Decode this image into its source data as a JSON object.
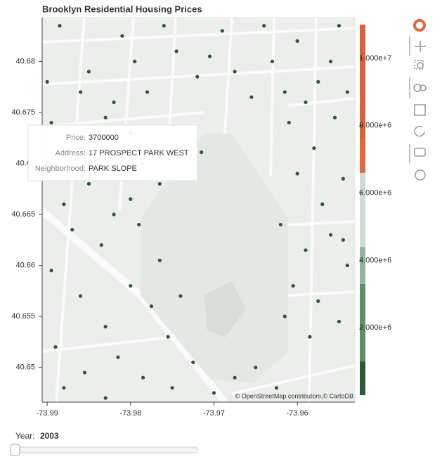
{
  "chart_data": {
    "type": "scatter",
    "title": "Brooklyn Residential Housing Prices",
    "xlim": [
      -73.9906,
      -73.9531
    ],
    "ylim": [
      40.6466,
      40.6843
    ],
    "xticks": [
      -73.99,
      -73.98,
      -73.97,
      -73.96
    ],
    "yticks": [
      40.65,
      40.655,
      40.66,
      40.665,
      40.67,
      40.675,
      40.68
    ],
    "series": [
      {
        "color": "#2c5a39",
        "x": [
          -73.9885,
          -73.985,
          -73.981,
          -73.978,
          -73.9745,
          -73.972,
          -73.969,
          -73.9655,
          -73.963,
          -73.96,
          -73.9575,
          -73.955,
          -73.986,
          -73.9795,
          -73.9705,
          -73.964,
          -73.959,
          -73.956,
          -73.982,
          -73.976,
          -73.9675,
          -73.99,
          -73.9615,
          -73.954,
          -73.9895,
          -73.986,
          -73.983,
          -73.98,
          -73.9785,
          -73.988,
          -73.985,
          -73.982,
          -73.98,
          -73.987,
          -73.9835,
          -73.979,
          -73.9765,
          -73.99,
          -73.961,
          -73.958,
          -73.9555,
          -73.96,
          -73.957,
          -73.9545,
          -73.962,
          -73.959,
          -73.956,
          -73.954,
          -73.9605,
          -73.9575,
          -73.955,
          -73.9615,
          -73.9585,
          -73.9545,
          -73.9895,
          -73.986,
          -73.983,
          -73.98,
          -73.9775,
          -73.9755,
          -73.989,
          -73.9855,
          -73.9815,
          -73.9785,
          -73.975,
          -73.9725,
          -73.97,
          -73.9675,
          -73.988,
          -73.983,
          -73.9765,
          -73.974,
          -73.965,
          -73.9625,
          -73.9715
        ],
        "y": [
          40.6835,
          40.679,
          40.6825,
          40.677,
          40.681,
          40.6785,
          40.683,
          40.6765,
          40.68,
          40.682,
          40.678,
          40.6835,
          40.677,
          40.68,
          40.6805,
          40.6835,
          40.676,
          40.68,
          40.676,
          40.6835,
          40.679,
          40.678,
          40.677,
          40.677,
          40.674,
          40.6715,
          40.6745,
          40.673,
          40.67,
          40.666,
          40.668,
          40.665,
          40.6665,
          40.6635,
          40.662,
          40.664,
          40.668,
          40.67,
          40.674,
          40.6715,
          40.6745,
          40.669,
          40.666,
          40.6685,
          40.664,
          40.6615,
          40.663,
          40.66,
          40.658,
          40.6565,
          40.6545,
          40.655,
          40.653,
          40.6625,
          40.6595,
          40.657,
          40.654,
          40.658,
          40.656,
          40.653,
          40.652,
          40.6495,
          40.651,
          40.649,
          40.648,
          40.6505,
          40.6475,
          40.649,
          40.648,
          40.647,
          40.6605,
          40.657,
          40.65,
          40.648,
          40.6711
        ]
      }
    ],
    "colorbar": {
      "clim": [
        0,
        11000000
      ],
      "bounds": [
        0,
        1000000,
        3300000,
        4400000,
        6600000,
        7650000,
        11000000
      ],
      "colors": [
        "#2c5a39",
        "#5a8f68",
        "#93b59d",
        "#cfdcd3",
        "#e2683f",
        "#d9623b"
      ],
      "ticks": [
        {
          "value": 2000000,
          "label": "2.000e+6"
        },
        {
          "value": 4000000,
          "label": "4.000e+6"
        },
        {
          "value": 6000000,
          "label": "6.000e+6"
        },
        {
          "value": 8000000,
          "label": "8.000e+6"
        },
        {
          "value": 10000000,
          "label": "1.000e+7"
        }
      ]
    },
    "tooltip": {
      "labels": [
        "Price:",
        "Address:",
        "Neighborhood:"
      ],
      "values": [
        3700000,
        "17 PROSPECT PARK WEST",
        "PARK SLOPE"
      ]
    },
    "attribution": "© OpenStreetMap contributors,© CartoDB",
    "slider": {
      "label": "Year:",
      "value": 2003
    }
  }
}
